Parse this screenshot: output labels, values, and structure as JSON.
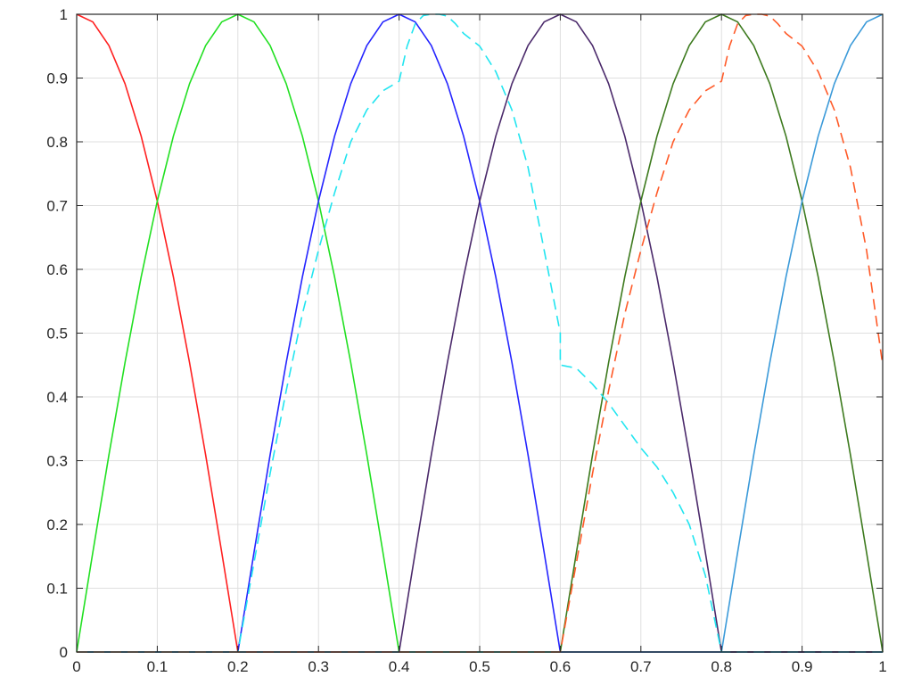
{
  "chart_data": {
    "type": "line",
    "title": "",
    "xlabel": "",
    "ylabel": "",
    "xlim": [
      0,
      1
    ],
    "ylim": [
      0,
      1
    ],
    "grid": true,
    "x_ticks": [
      {
        "value": 0,
        "label": "0"
      },
      {
        "value": 0.1,
        "label": "0.1"
      },
      {
        "value": 0.2,
        "label": "0.2"
      },
      {
        "value": 0.3,
        "label": "0.3"
      },
      {
        "value": 0.4,
        "label": "0.4"
      },
      {
        "value": 0.5,
        "label": "0.5"
      },
      {
        "value": 0.6,
        "label": "0.6"
      },
      {
        "value": 0.7,
        "label": "0.7"
      },
      {
        "value": 0.8,
        "label": "0.8"
      },
      {
        "value": 0.9,
        "label": "0.9"
      },
      {
        "value": 1,
        "label": "1"
      }
    ],
    "y_ticks": [
      {
        "value": 0,
        "label": "0"
      },
      {
        "value": 0.1,
        "label": "0.1"
      },
      {
        "value": 0.2,
        "label": "0.2"
      },
      {
        "value": 0.3,
        "label": "0.3"
      },
      {
        "value": 0.4,
        "label": "0.4"
      },
      {
        "value": 0.5,
        "label": "0.5"
      },
      {
        "value": 0.6,
        "label": "0.6"
      },
      {
        "value": 0.7,
        "label": "0.7"
      },
      {
        "value": 0.8,
        "label": "0.8"
      },
      {
        "value": 0.9,
        "label": "0.9"
      },
      {
        "value": 1,
        "label": "1"
      }
    ],
    "series": [
      {
        "color": "#ff2020",
        "dash": "solid",
        "x": [
          0,
          0.02,
          0.04,
          0.06,
          0.08,
          0.1,
          0.12,
          0.14,
          0.16,
          0.18,
          0.2,
          0.4,
          0.6,
          0.8,
          1.0
        ],
        "y": [
          1,
          0.988,
          0.951,
          0.891,
          0.809,
          0.707,
          0.588,
          0.454,
          0.309,
          0.156,
          0,
          0,
          0,
          0,
          0
        ]
      },
      {
        "color": "#22e022",
        "dash": "solid",
        "x": [
          0,
          0.02,
          0.04,
          0.06,
          0.08,
          0.1,
          0.12,
          0.14,
          0.16,
          0.18,
          0.2,
          0.22,
          0.24,
          0.26,
          0.28,
          0.3,
          0.32,
          0.34,
          0.36,
          0.38,
          0.4,
          0.6,
          0.8,
          1.0
        ],
        "y": [
          0,
          0.156,
          0.309,
          0.454,
          0.588,
          0.707,
          0.809,
          0.891,
          0.951,
          0.988,
          1,
          0.988,
          0.951,
          0.891,
          0.809,
          0.707,
          0.588,
          0.454,
          0.309,
          0.156,
          0,
          0,
          0,
          0
        ]
      },
      {
        "color": "#2525ff",
        "dash": "solid",
        "x": [
          0,
          0.2,
          0.22,
          0.24,
          0.26,
          0.28,
          0.3,
          0.32,
          0.34,
          0.36,
          0.38,
          0.4,
          0.42,
          0.44,
          0.46,
          0.48,
          0.5,
          0.52,
          0.54,
          0.56,
          0.58,
          0.6,
          0.8,
          1.0
        ],
        "y": [
          0,
          0,
          0.156,
          0.309,
          0.454,
          0.588,
          0.707,
          0.809,
          0.891,
          0.951,
          0.988,
          1,
          0.988,
          0.951,
          0.891,
          0.809,
          0.707,
          0.588,
          0.454,
          0.309,
          0.156,
          0,
          0,
          0
        ]
      },
      {
        "color": "#4b2a6b",
        "dash": "solid",
        "x": [
          0,
          0.4,
          0.42,
          0.44,
          0.46,
          0.48,
          0.5,
          0.52,
          0.54,
          0.56,
          0.58,
          0.6,
          0.62,
          0.64,
          0.66,
          0.68,
          0.7,
          0.72,
          0.74,
          0.76,
          0.78,
          0.8,
          1.0
        ],
        "y": [
          0,
          0,
          0.156,
          0.309,
          0.454,
          0.588,
          0.707,
          0.809,
          0.891,
          0.951,
          0.988,
          1,
          0.988,
          0.951,
          0.891,
          0.809,
          0.707,
          0.588,
          0.454,
          0.309,
          0.156,
          0,
          0
        ]
      },
      {
        "color": "#3d7a1e",
        "dash": "solid",
        "x": [
          0,
          0.6,
          0.62,
          0.64,
          0.66,
          0.68,
          0.7,
          0.72,
          0.74,
          0.76,
          0.78,
          0.8,
          0.82,
          0.84,
          0.86,
          0.88,
          0.9,
          0.92,
          0.94,
          0.96,
          0.98,
          1.0
        ],
        "y": [
          0,
          0,
          0.156,
          0.309,
          0.454,
          0.588,
          0.707,
          0.809,
          0.891,
          0.951,
          0.988,
          1,
          0.988,
          0.951,
          0.891,
          0.809,
          0.707,
          0.588,
          0.454,
          0.309,
          0.156,
          0
        ]
      },
      {
        "color": "#3b9ad9",
        "dash": "solid",
        "x": [
          0,
          0.8,
          0.82,
          0.84,
          0.86,
          0.88,
          0.9,
          0.92,
          0.94,
          0.96,
          0.98,
          1.0
        ],
        "y": [
          0,
          0,
          0.156,
          0.309,
          0.454,
          0.588,
          0.707,
          0.809,
          0.891,
          0.951,
          0.988,
          1
        ]
      },
      {
        "color": "#22e5f0",
        "dash": "dashed",
        "x": [
          0,
          0.2,
          0.22,
          0.24,
          0.26,
          0.28,
          0.3,
          0.32,
          0.34,
          0.36,
          0.38,
          0.4,
          0.41,
          0.42,
          0.43,
          0.44,
          0.45,
          0.46,
          0.47,
          0.48,
          0.5,
          0.52,
          0.54,
          0.56,
          0.58,
          0.6,
          0.6,
          0.62,
          0.64,
          0.66,
          0.68,
          0.7,
          0.72,
          0.74,
          0.76,
          0.78,
          0.8,
          0.9,
          1.0
        ],
        "y": [
          0,
          0,
          0.14,
          0.28,
          0.41,
          0.53,
          0.63,
          0.72,
          0.8,
          0.85,
          0.88,
          0.895,
          0.95,
          0.985,
          0.998,
          1.0,
          1.0,
          0.997,
          0.985,
          0.97,
          0.95,
          0.91,
          0.85,
          0.76,
          0.63,
          0.5,
          0.45,
          0.445,
          0.42,
          0.39,
          0.355,
          0.32,
          0.29,
          0.25,
          0.2,
          0.12,
          0,
          0,
          0
        ]
      },
      {
        "color": "#ff5a28",
        "dash": "dashed",
        "x": [
          0,
          0.6,
          0.62,
          0.64,
          0.66,
          0.68,
          0.7,
          0.72,
          0.74,
          0.76,
          0.78,
          0.8,
          0.81,
          0.82,
          0.83,
          0.84,
          0.85,
          0.86,
          0.87,
          0.88,
          0.9,
          0.92,
          0.94,
          0.96,
          0.98,
          1.0
        ],
        "y": [
          0,
          0,
          0.14,
          0.28,
          0.41,
          0.53,
          0.63,
          0.72,
          0.8,
          0.85,
          0.88,
          0.895,
          0.95,
          0.985,
          0.998,
          1.0,
          1.0,
          0.997,
          0.985,
          0.97,
          0.95,
          0.91,
          0.85,
          0.76,
          0.63,
          0.45
        ]
      }
    ]
  }
}
